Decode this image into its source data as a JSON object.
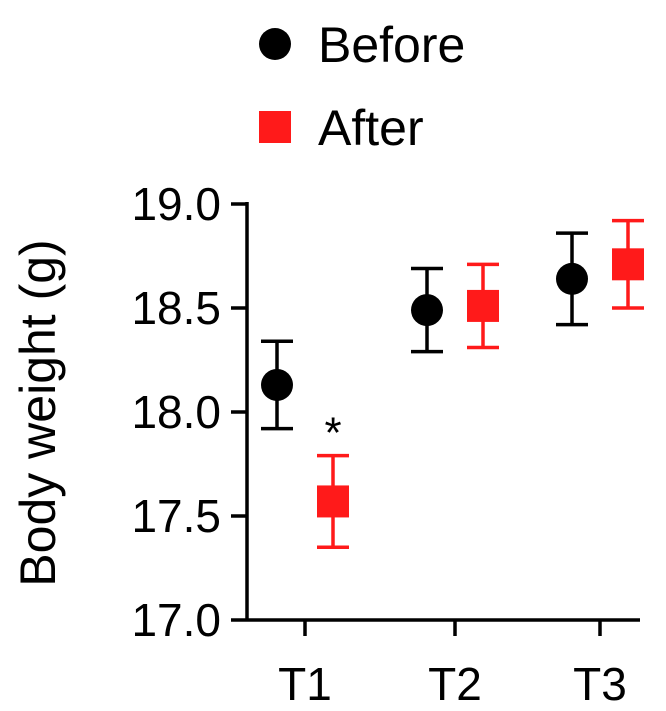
{
  "chart_data": {
    "type": "scatter",
    "categories": [
      "T1",
      "T2",
      "T3"
    ],
    "ylabel": "Body weight (g)",
    "xlabel": "",
    "ylim": [
      17.0,
      19.0
    ],
    "yticks": [
      "17.0",
      "17.5",
      "18.0",
      "18.5",
      "19.0"
    ],
    "legend_position": "top",
    "series": [
      {
        "name": "Before",
        "marker": "circle",
        "color": "#000000",
        "values": [
          18.13,
          18.49,
          18.64
        ],
        "error": [
          0.21,
          0.2,
          0.22
        ]
      },
      {
        "name": "After",
        "marker": "square",
        "color": "#ff1a1a",
        "values": [
          17.57,
          18.51,
          18.71
        ],
        "error": [
          0.22,
          0.2,
          0.21
        ]
      }
    ],
    "annotations": [
      {
        "text": "*",
        "category": "T1",
        "series": "After"
      }
    ]
  }
}
